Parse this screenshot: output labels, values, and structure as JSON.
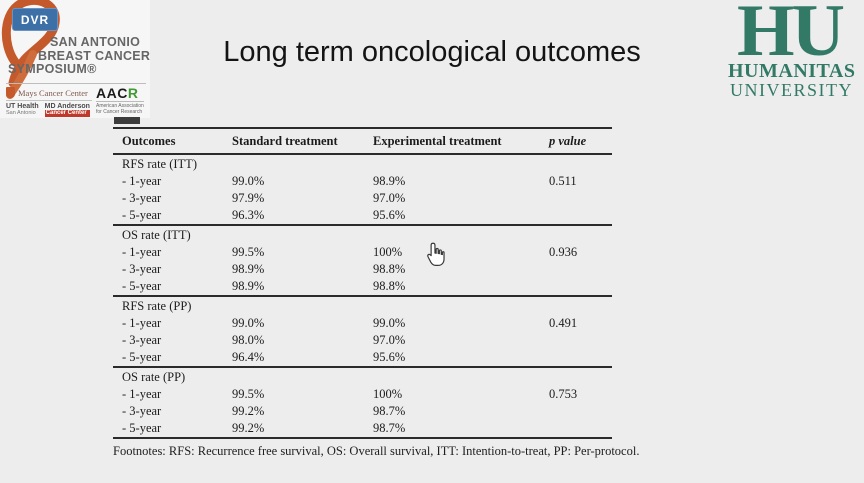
{
  "colors": {
    "background": "#ededee",
    "humanitas_green": "#337a66",
    "ribbon_orange": "#c45a2c",
    "dvr_blue": "#3e70a8",
    "aacr_green": "#3f9c35",
    "table_line": "#2b2b2b"
  },
  "dvr_badge": {
    "label": "DVR"
  },
  "sabcs": {
    "line1": "SAN ANTONIO",
    "line2": "BREAST CANCER",
    "line3": "SYMPOSIUM®"
  },
  "partners": {
    "mays": {
      "name": "Mays Cancer Center",
      "ut": "UT Health",
      "ut_sub": "San Antonio",
      "md": "MD Anderson",
      "md_sub": "Cancer Center"
    },
    "aacr": {
      "black": "AAC",
      "green": "R",
      "subtitle": "American Association for Cancer Research"
    }
  },
  "title": "Long term oncological outcomes",
  "humanitas": {
    "monogram": "HU",
    "line1": "HUMANITAS",
    "line2": "UNIVERSITY"
  },
  "table": {
    "columns": [
      "Outcomes",
      "Standard treatment",
      "Experimental treatment",
      "p value"
    ],
    "sections": [
      {
        "label": "RFS rate (ITT)",
        "rows": [
          [
            "- 1-year",
            "99.0%",
            "98.9%",
            "0.511"
          ],
          [
            "- 3-year",
            "97.9%",
            "97.0%",
            ""
          ],
          [
            "- 5-year",
            "96.3%",
            "95.6%",
            ""
          ]
        ]
      },
      {
        "label": "OS rate (ITT)",
        "rows": [
          [
            "- 1-year",
            "99.5%",
            "100%",
            "0.936"
          ],
          [
            "- 3-year",
            "98.9%",
            "98.8%",
            ""
          ],
          [
            "- 5-year",
            "98.9%",
            "98.8%",
            ""
          ]
        ]
      },
      {
        "label": "RFS rate (PP)",
        "rows": [
          [
            "- 1-year",
            "99.0%",
            "99.0%",
            "0.491"
          ],
          [
            "- 3-year",
            "98.0%",
            "97.0%",
            ""
          ],
          [
            "- 5-year",
            "96.4%",
            "95.6%",
            ""
          ]
        ]
      },
      {
        "label": "OS rate (PP)",
        "rows": [
          [
            "- 1-year",
            "99.5%",
            "100%",
            "0.753"
          ],
          [
            "- 3-year",
            "99.2%",
            "98.7%",
            ""
          ],
          [
            "- 5-year",
            "99.2%",
            "98.7%",
            ""
          ]
        ]
      }
    ]
  },
  "footnote": "Footnotes: RFS: Recurrence free survival, OS: Overall survival, ITT: Intention-to-treat, PP: Per-protocol.",
  "cursor": "hand-pointer"
}
